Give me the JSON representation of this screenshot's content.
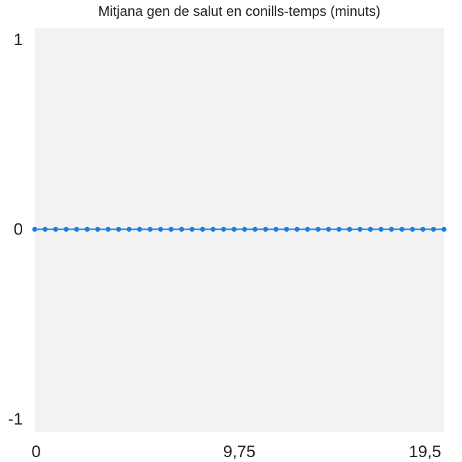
{
  "chart_data": {
    "type": "line",
    "title": "Mitjana gen de salut en conills-temps (minuts)",
    "xlabel": "",
    "ylabel": "",
    "xlim": [
      0,
      19.5
    ],
    "ylim": [
      -1,
      1
    ],
    "x_tick_labels": [
      "0",
      "9,75",
      "19,5"
    ],
    "y_tick_labels": [
      "1",
      "0",
      "-1"
    ],
    "x_ticks": [
      0,
      9.75,
      19.5
    ],
    "y_ticks": [
      1,
      0,
      -1
    ],
    "grid": false,
    "series": [
      {
        "x": [
          0,
          0.5,
          1,
          1.5,
          2,
          2.5,
          3,
          3.5,
          4,
          4.5,
          5,
          5.5,
          6,
          6.5,
          7,
          7.5,
          8,
          8.5,
          9,
          9.5,
          10,
          10.5,
          11,
          11.5,
          12,
          12.5,
          13,
          13.5,
          14,
          14.5,
          15,
          15.5,
          16,
          16.5,
          17,
          17.5,
          18,
          18.5,
          19,
          19.5
        ],
        "values": [
          0,
          0,
          0,
          0,
          0,
          0,
          0,
          0,
          0,
          0,
          0,
          0,
          0,
          0,
          0,
          0,
          0,
          0,
          0,
          0,
          0,
          0,
          0,
          0,
          0,
          0,
          0,
          0,
          0,
          0,
          0,
          0,
          0,
          0,
          0,
          0,
          0,
          0,
          0,
          0
        ]
      }
    ]
  },
  "colors": {
    "series": "#1a7fe0",
    "plot_background": "#f2f2f2",
    "text": "#222222"
  }
}
